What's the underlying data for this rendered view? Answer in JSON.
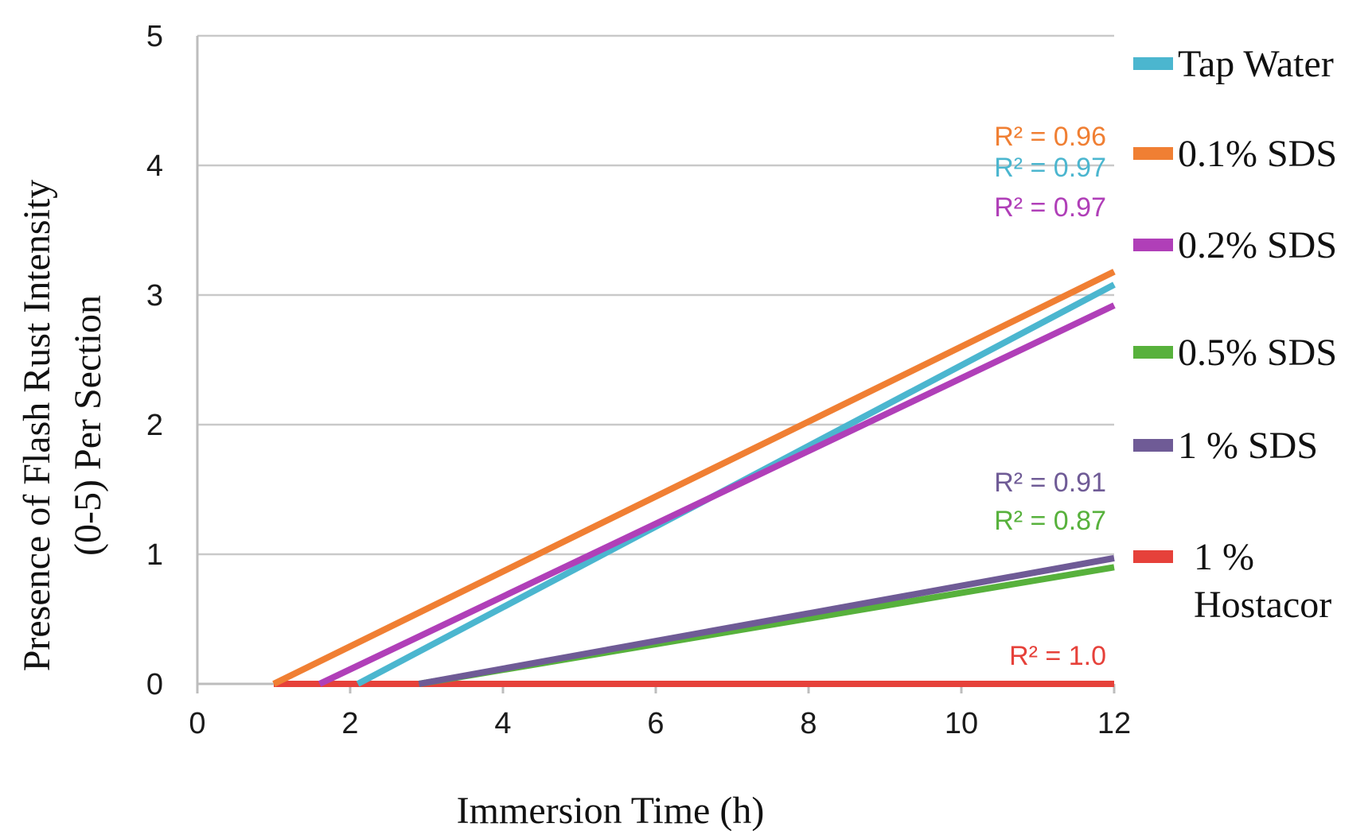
{
  "chart_data": {
    "type": "line",
    "title": "",
    "xlabel": "Immersion Time (h)",
    "ylabel_lines": [
      "Presence of Flash Rust Intensity",
      "(0-5) Per Section"
    ],
    "xlim": [
      0,
      12
    ],
    "ylim": [
      0,
      5
    ],
    "x_ticks": [
      "0",
      "2",
      "4",
      "6",
      "8",
      "10",
      "12"
    ],
    "y_ticks": [
      "0",
      "1",
      "2",
      "3",
      "4",
      "5"
    ],
    "grid": "horizontal",
    "legend_position": "right",
    "series": [
      {
        "name": "Tap Water",
        "color": "#4bb6cf",
        "x": [
          2.1,
          12
        ],
        "y": [
          0,
          3.08
        ],
        "r2": "R² = 0.97"
      },
      {
        "name": "0.1% SDS",
        "color": "#f07f33",
        "x": [
          1.0,
          12
        ],
        "y": [
          0,
          3.18
        ],
        "r2": "R² = 0.96"
      },
      {
        "name": "0.2% SDS",
        "color": "#b03fb8",
        "x": [
          1.6,
          12
        ],
        "y": [
          0,
          2.92
        ],
        "r2": "R² = 0.97"
      },
      {
        "name": "0.5% SDS",
        "color": "#57b13c",
        "x": [
          2.9,
          12
        ],
        "y": [
          0,
          0.9
        ],
        "r2": "R² = 0.87"
      },
      {
        "name": "1 % SDS",
        "color": "#6f5b96",
        "x": [
          2.9,
          12
        ],
        "y": [
          0,
          0.97
        ],
        "r2": "R² = 0.91"
      },
      {
        "name_lines": [
          "1 %",
          "Hostacor"
        ],
        "color": "#e6413a",
        "x": [
          1.0,
          12
        ],
        "y": [
          0,
          0.0
        ],
        "r2": "R² = 1.0"
      }
    ]
  }
}
